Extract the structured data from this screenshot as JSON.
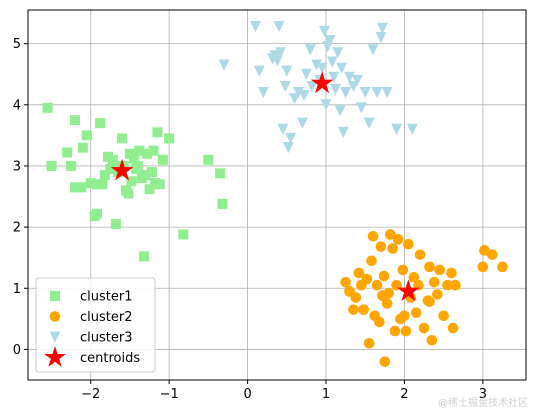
{
  "chart_data": {
    "type": "scatter",
    "xlim": [
      -2.8,
      3.55
    ],
    "ylim": [
      -0.5,
      5.55
    ],
    "xticks": [
      -2,
      -1,
      0,
      1,
      2,
      3
    ],
    "yticks": [
      0,
      1,
      2,
      3,
      4,
      5
    ],
    "grid": true,
    "legend_position": "lower-left",
    "series": [
      {
        "name": "cluster1",
        "marker": "square",
        "color": "#90ee90",
        "points": [
          [
            -2.55,
            3.95
          ],
          [
            -2.5,
            3.0
          ],
          [
            -2.3,
            3.22
          ],
          [
            -2.25,
            3.0
          ],
          [
            -2.2,
            2.65
          ],
          [
            -2.2,
            3.75
          ],
          [
            -2.12,
            2.65
          ],
          [
            -2.1,
            3.3
          ],
          [
            -2.05,
            3.5
          ],
          [
            -2.0,
            2.72
          ],
          [
            -1.95,
            2.18
          ],
          [
            -1.92,
            2.22
          ],
          [
            -1.88,
            3.7
          ],
          [
            -1.85,
            2.7
          ],
          [
            -1.82,
            2.85
          ],
          [
            -1.78,
            3.15
          ],
          [
            -1.75,
            2.95
          ],
          [
            -1.72,
            3.1
          ],
          [
            -1.68,
            2.05
          ],
          [
            -1.65,
            2.9
          ],
          [
            -1.6,
            3.45
          ],
          [
            -1.58,
            3.0
          ],
          [
            -1.55,
            2.6
          ],
          [
            -1.52,
            2.55
          ],
          [
            -1.5,
            3.2
          ],
          [
            -1.48,
            2.75
          ],
          [
            -1.45,
            3.12
          ],
          [
            -1.42,
            2.95
          ],
          [
            -1.38,
            3.25
          ],
          [
            -1.35,
            2.8
          ],
          [
            -1.32,
            1.52
          ],
          [
            -1.3,
            2.85
          ],
          [
            -1.28,
            3.2
          ],
          [
            -1.25,
            2.62
          ],
          [
            -1.22,
            2.9
          ],
          [
            -1.2,
            3.25
          ],
          [
            -1.18,
            2.72
          ],
          [
            -1.15,
            3.55
          ],
          [
            -1.12,
            2.7
          ],
          [
            -1.08,
            3.1
          ],
          [
            -1.0,
            3.45
          ],
          [
            -0.82,
            1.88
          ],
          [
            -0.5,
            3.1
          ],
          [
            -0.35,
            2.88
          ],
          [
            -0.32,
            2.38
          ],
          [
            -1.92,
            2.7
          ],
          [
            -1.62,
            3.0
          ],
          [
            -1.4,
            3.0
          ]
        ]
      },
      {
        "name": "cluster2",
        "marker": "circle",
        "color": "#ffa500",
        "points": [
          [
            1.25,
            1.1
          ],
          [
            1.3,
            0.95
          ],
          [
            1.35,
            0.65
          ],
          [
            1.38,
            0.85
          ],
          [
            1.42,
            1.25
          ],
          [
            1.45,
            1.05
          ],
          [
            1.48,
            0.65
          ],
          [
            1.52,
            1.15
          ],
          [
            1.55,
            0.1
          ],
          [
            1.58,
            1.45
          ],
          [
            1.6,
            1.85
          ],
          [
            1.62,
            0.55
          ],
          [
            1.65,
            1.05
          ],
          [
            1.68,
            0.45
          ],
          [
            1.7,
            1.68
          ],
          [
            1.72,
            0.88
          ],
          [
            1.74,
            1.2
          ],
          [
            1.75,
            -0.2
          ],
          [
            1.78,
            0.75
          ],
          [
            1.8,
            0.92
          ],
          [
            1.82,
            1.88
          ],
          [
            1.85,
            1.65
          ],
          [
            1.88,
            0.3
          ],
          [
            1.9,
            1.05
          ],
          [
            1.92,
            1.8
          ],
          [
            1.95,
            0.5
          ],
          [
            1.98,
            1.3
          ],
          [
            2.0,
            0.55
          ],
          [
            2.02,
            0.3
          ],
          [
            2.05,
            1.72
          ],
          [
            2.08,
            0.85
          ],
          [
            2.12,
            1.18
          ],
          [
            2.15,
            0.6
          ],
          [
            2.18,
            1.05
          ],
          [
            2.2,
            1.55
          ],
          [
            2.25,
            0.35
          ],
          [
            2.3,
            0.8
          ],
          [
            2.32,
            1.35
          ],
          [
            2.35,
            0.15
          ],
          [
            2.38,
            1.1
          ],
          [
            2.42,
            0.9
          ],
          [
            2.45,
            1.3
          ],
          [
            2.5,
            0.55
          ],
          [
            2.55,
            1.05
          ],
          [
            2.6,
            1.25
          ],
          [
            2.62,
            0.35
          ],
          [
            2.65,
            1.05
          ],
          [
            3.0,
            1.35
          ],
          [
            3.02,
            1.62
          ],
          [
            3.12,
            1.55
          ],
          [
            3.25,
            1.35
          ],
          [
            2.32,
            0.78
          ]
        ]
      },
      {
        "name": "cluster3",
        "marker": "triangle-down",
        "color": "#add8e6",
        "points": [
          [
            -0.3,
            4.65
          ],
          [
            0.1,
            5.28
          ],
          [
            0.15,
            4.55
          ],
          [
            0.2,
            4.2
          ],
          [
            0.35,
            4.8
          ],
          [
            0.38,
            4.72
          ],
          [
            0.4,
            5.28
          ],
          [
            0.42,
            4.85
          ],
          [
            0.45,
            3.6
          ],
          [
            0.48,
            4.3
          ],
          [
            0.5,
            4.55
          ],
          [
            0.52,
            3.3
          ],
          [
            0.55,
            3.45
          ],
          [
            0.6,
            4.1
          ],
          [
            0.65,
            4.2
          ],
          [
            0.7,
            3.7
          ],
          [
            0.72,
            4.15
          ],
          [
            0.75,
            4.5
          ],
          [
            0.8,
            4.9
          ],
          [
            0.82,
            4.3
          ],
          [
            0.88,
            4.65
          ],
          [
            0.92,
            4.4
          ],
          [
            0.95,
            4.6
          ],
          [
            0.98,
            5.2
          ],
          [
            1.0,
            4.0
          ],
          [
            1.02,
            4.95
          ],
          [
            1.05,
            5.05
          ],
          [
            1.08,
            4.7
          ],
          [
            1.1,
            4.45
          ],
          [
            1.12,
            4.25
          ],
          [
            1.15,
            4.85
          ],
          [
            1.18,
            3.9
          ],
          [
            1.2,
            4.6
          ],
          [
            1.22,
            3.55
          ],
          [
            1.25,
            4.2
          ],
          [
            1.3,
            4.45
          ],
          [
            1.35,
            4.3
          ],
          [
            1.4,
            4.4
          ],
          [
            1.45,
            3.95
          ],
          [
            1.5,
            4.2
          ],
          [
            1.55,
            3.7
          ],
          [
            1.6,
            4.9
          ],
          [
            1.65,
            4.2
          ],
          [
            1.7,
            5.1
          ],
          [
            1.72,
            5.25
          ],
          [
            1.78,
            4.2
          ],
          [
            1.9,
            3.6
          ],
          [
            2.1,
            3.6
          ],
          [
            0.32,
            4.75
          ]
        ]
      },
      {
        "name": "centroids",
        "marker": "star",
        "color": "#ff0000",
        "points": [
          [
            -1.6,
            2.92
          ],
          [
            2.05,
            0.95
          ],
          [
            0.95,
            4.35
          ]
        ]
      }
    ]
  }
}
